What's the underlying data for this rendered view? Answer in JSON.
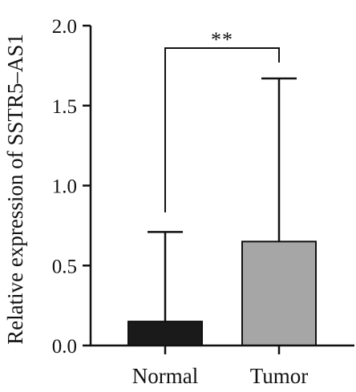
{
  "chart_data": {
    "type": "bar",
    "categories": [
      "Normal",
      "Tumor"
    ],
    "values": [
      0.15,
      0.65
    ],
    "error_upper": [
      0.71,
      1.67
    ],
    "colors": [
      "#1a1a1a",
      "#a6a6a6"
    ],
    "ylabel": "Relative expression of SSTR5–AS1",
    "ylim": [
      0,
      2.0
    ],
    "yticks": [
      "0.0",
      "0.5",
      "1.0",
      "1.5",
      "2.0"
    ],
    "ytick_values": [
      0,
      0.5,
      1.0,
      1.5,
      2.0
    ],
    "significance": {
      "label": "**",
      "between": [
        "Normal",
        "Tumor"
      ]
    },
    "grid": false,
    "legend": "none"
  }
}
